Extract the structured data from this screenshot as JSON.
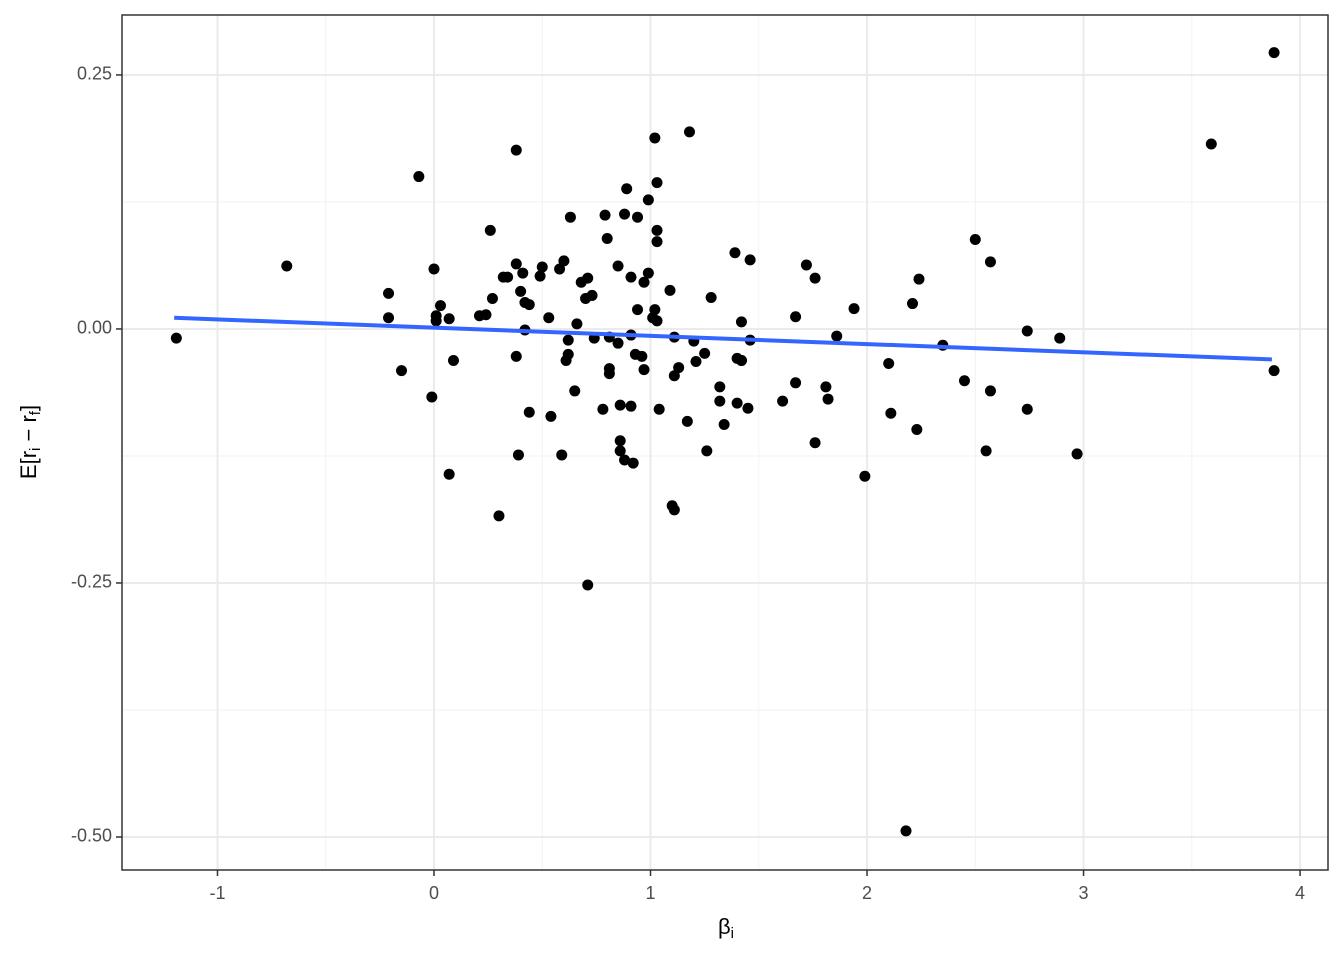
{
  "chart_data": {
    "type": "scatter",
    "xlabel_parts": [
      "β",
      "i"
    ],
    "ylabel_parts": [
      "E[r",
      "i",
      " − r",
      "f",
      "]"
    ],
    "xlim": [
      -1.441,
      4.129
    ],
    "ylim": [
      -0.5325,
      0.309
    ],
    "xticks": [
      -1,
      0,
      1,
      2,
      3,
      4
    ],
    "yticks": [
      {
        "value": -0.5,
        "label": "-0.50"
      },
      -0.25,
      {
        "value": 0,
        "label": "0.00"
      },
      0.25
    ],
    "minor_xticks": [
      -0.5,
      0.5,
      1.5,
      2.5,
      3.5
    ],
    "minor_yticks": [
      -0.375,
      -0.125,
      0.125
    ],
    "grid": true,
    "color": "#000000",
    "x": [
      -1.19,
      -0.68,
      -0.21,
      -0.21,
      -0.15,
      -0.07,
      -0.01,
      0.0,
      0.01,
      0.01,
      0.03,
      0.07,
      0.07,
      0.09,
      0.21,
      0.24,
      0.26,
      0.27,
      0.3,
      0.32,
      0.34,
      0.38,
      0.38,
      0.38,
      0.39,
      0.4,
      0.41,
      0.42,
      0.42,
      0.44,
      0.44,
      0.49,
      0.5,
      0.53,
      0.54,
      0.58,
      0.59,
      0.6,
      0.61,
      0.62,
      0.62,
      0.63,
      0.65,
      0.66,
      0.68,
      0.7,
      0.71,
      0.71,
      0.73,
      0.74,
      0.78,
      0.79,
      0.8,
      0.81,
      0.81,
      0.81,
      0.85,
      0.85,
      0.86,
      0.86,
      0.86,
      0.88,
      0.88,
      0.89,
      0.91,
      0.91,
      0.91,
      0.92,
      0.93,
      0.94,
      0.94,
      0.96,
      0.97,
      0.97,
      0.99,
      0.99,
      1.01,
      1.02,
      1.02,
      1.03,
      1.03,
      1.03,
      1.03,
      1.04,
      1.09,
      1.1,
      1.11,
      1.11,
      1.11,
      1.13,
      1.17,
      1.18,
      1.2,
      1.21,
      1.25,
      1.26,
      1.28,
      1.32,
      1.32,
      1.34,
      1.39,
      1.4,
      1.4,
      1.42,
      1.42,
      1.42,
      1.45,
      1.46,
      1.46,
      1.61,
      1.67,
      1.67,
      1.72,
      1.76,
      1.76,
      1.81,
      1.82,
      1.86,
      1.94,
      1.99,
      2.1,
      2.11,
      2.18,
      2.21,
      2.23,
      2.24,
      2.35,
      2.45,
      2.5,
      2.55,
      2.57,
      2.57,
      2.74,
      2.74,
      2.89,
      2.97,
      3.59,
      3.88,
      3.88
    ],
    "values": [
      -0.009,
      0.062,
      0.035,
      0.011,
      -0.041,
      0.15,
      -0.067,
      0.059,
      0.013,
      0.008,
      0.023,
      -0.143,
      0.01,
      -0.031,
      0.013,
      0.014,
      0.097,
      0.03,
      -0.184,
      0.051,
      0.051,
      0.176,
      0.064,
      -0.027,
      -0.124,
      0.037,
      0.055,
      -0.001,
      0.026,
      -0.082,
      0.024,
      0.052,
      0.061,
      0.011,
      -0.086,
      0.059,
      -0.124,
      0.067,
      -0.031,
      -0.025,
      -0.011,
      0.11,
      -0.061,
      0.005,
      0.046,
      0.03,
      0.05,
      -0.252,
      0.033,
      -0.009,
      -0.079,
      0.112,
      0.089,
      -0.008,
      -0.039,
      -0.044,
      0.062,
      -0.014,
      -0.075,
      -0.12,
      -0.11,
      -0.129,
      0.113,
      0.138,
      0.051,
      -0.076,
      -0.006,
      -0.132,
      -0.025,
      0.019,
      0.11,
      -0.027,
      0.046,
      -0.04,
      0.127,
      0.055,
      0.011,
      0.188,
      0.019,
      0.008,
      0.097,
      0.144,
      0.086,
      -0.079,
      0.038,
      -0.174,
      -0.046,
      -0.008,
      -0.178,
      -0.038,
      -0.091,
      0.194,
      -0.012,
      -0.032,
      -0.024,
      -0.12,
      0.031,
      -0.071,
      -0.057,
      -0.094,
      0.075,
      -0.029,
      -0.073,
      0.007,
      -0.031,
      -0.031,
      -0.078,
      0.068,
      -0.011,
      -0.071,
      0.012,
      -0.053,
      0.063,
      0.05,
      -0.112,
      -0.057,
      -0.069,
      -0.007,
      0.02,
      -0.145,
      -0.034,
      -0.083,
      -0.494,
      0.025,
      -0.099,
      0.049,
      -0.016,
      -0.051,
      0.088,
      -0.12,
      0.066,
      -0.061,
      -0.079,
      -0.002,
      -0.009,
      -0.123,
      0.182,
      0.272,
      -0.041
    ],
    "fit": {
      "x": [
        -1.2,
        3.87
      ],
      "values": [
        0.011,
        -0.03
      ],
      "color": "#3366ff"
    }
  }
}
